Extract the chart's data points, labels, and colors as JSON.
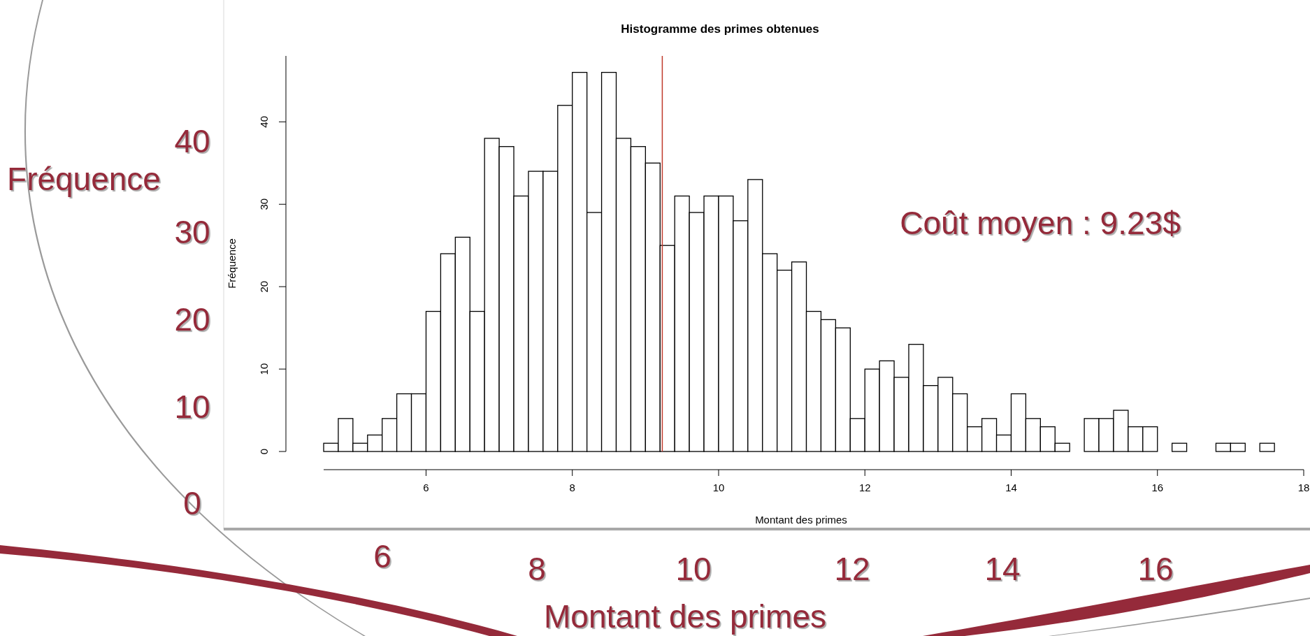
{
  "chart_data": {
    "type": "histogram",
    "title": "Histogramme des primes obtenues",
    "xlabel": "Montant des primes",
    "ylabel": "Fréquence",
    "bins": [
      4.6,
      4.8,
      5.0,
      5.2,
      5.4,
      5.6,
      5.8,
      6.0,
      6.2,
      6.4,
      6.6,
      6.8,
      7.0,
      7.2,
      7.4,
      7.6,
      7.8,
      8.0,
      8.2,
      8.4,
      8.6,
      8.8,
      9.0,
      9.2,
      9.4,
      9.6,
      9.8,
      10.0,
      10.2,
      10.4,
      10.6,
      10.8,
      11.0,
      11.2,
      11.4,
      11.6,
      11.8,
      12.0,
      12.2,
      12.4,
      12.6,
      12.8,
      13.0,
      13.2,
      13.4,
      13.6,
      13.8,
      14.0,
      14.2,
      14.4,
      14.6,
      14.8,
      15.0,
      15.2,
      15.4,
      15.6,
      15.8,
      16.0,
      16.2,
      16.4,
      16.6,
      16.8,
      17.0,
      17.2,
      17.4,
      17.6
    ],
    "values": [
      1,
      4,
      1,
      2,
      4,
      7,
      7,
      17,
      24,
      26,
      17,
      38,
      37,
      31,
      34,
      34,
      42,
      46,
      29,
      46,
      38,
      37,
      35,
      25,
      31,
      29,
      31,
      31,
      28,
      33,
      24,
      22,
      23,
      17,
      16,
      15,
      4,
      10,
      11,
      9,
      13,
      8,
      9,
      7,
      3,
      4,
      2,
      7,
      4,
      3,
      1,
      0,
      4,
      4,
      5,
      3,
      3,
      0,
      1,
      0,
      0,
      1,
      1,
      0,
      1
    ],
    "color": "#ffffff",
    "xlim": [
      4.6,
      18
    ],
    "xticks": [
      6,
      8,
      10,
      12,
      14,
      16,
      18
    ],
    "ylim": [
      0,
      48
    ],
    "yticks": [
      0,
      10,
      20,
      30,
      40
    ],
    "ref_lines": [
      {
        "axis": "x",
        "value": 9.23,
        "color": "#c0392b"
      }
    ],
    "annotations": [
      "Fréquence",
      "40",
      "30",
      "20",
      "10",
      "0",
      "6",
      "8",
      "10",
      "12",
      "14",
      "16",
      "Montant des primes",
      "Coût moyen : 9.23$"
    ],
    "grid": false
  }
}
